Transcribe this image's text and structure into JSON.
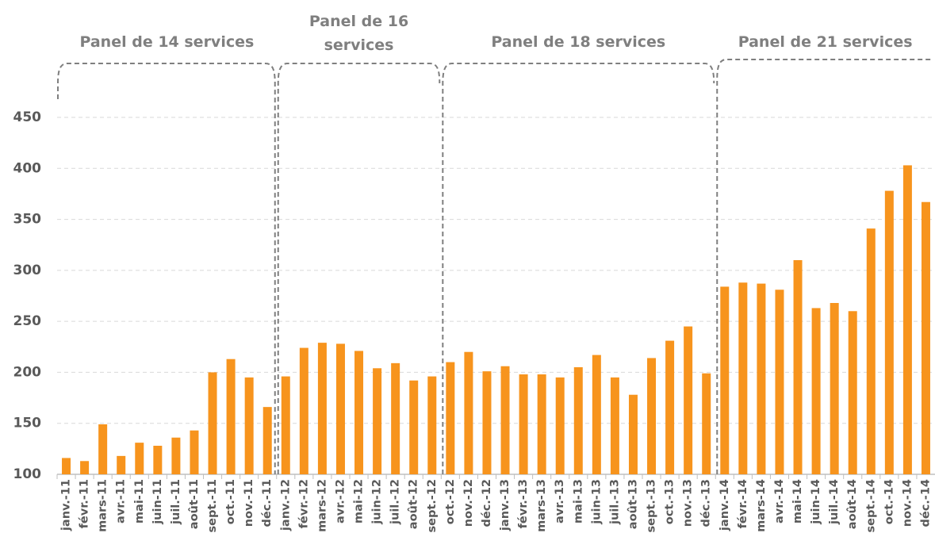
{
  "chart_data": {
    "type": "bar",
    "categories": [
      "janv.-11",
      "févr.-11",
      "mars-11",
      "avr.-11",
      "mai-11",
      "juin-11",
      "juil.-11",
      "août-11",
      "sept.-11",
      "oct.-11",
      "nov.-11",
      "déc.-11",
      "janv.-12",
      "févr.-12",
      "mars-12",
      "avr.-12",
      "mai-12",
      "juin-12",
      "juil.-12",
      "août-12",
      "sept.-12",
      "oct.-12",
      "nov.-12",
      "déc.-12",
      "janv.-13",
      "févr.-13",
      "mars-13",
      "avr.-13",
      "mai-13",
      "juin-13",
      "juil.-13",
      "août-13",
      "sept.-13",
      "oct.-13",
      "nov.-13",
      "déc.-13",
      "janv.-14",
      "févr.-14",
      "mars-14",
      "avr.-14",
      "mai-14",
      "juin-14",
      "juil.-14",
      "août-14",
      "sept.-14",
      "oct.-14",
      "nov.-14",
      "déc.-14"
    ],
    "values": [
      116,
      113,
      149,
      118,
      131,
      128,
      136,
      143,
      200,
      213,
      195,
      166,
      196,
      224,
      229,
      228,
      221,
      204,
      209,
      192,
      196,
      210,
      220,
      201,
      206,
      198,
      198,
      195,
      205,
      217,
      195,
      178,
      214,
      231,
      245,
      199,
      284,
      288,
      287,
      281,
      310,
      263,
      268,
      260,
      341,
      378,
      403,
      367
    ],
    "color": "#f7941d",
    "ylim": [
      100,
      450
    ],
    "yticks": [
      100,
      150,
      200,
      250,
      300,
      350,
      400,
      450
    ],
    "grid": true,
    "annotations": [
      {
        "lines": [
          "Panel de 14 services"
        ],
        "start": "janv.-11",
        "end": "déc.-11"
      },
      {
        "lines": [
          "Panel de 16",
          "services"
        ],
        "start": "janv.-12",
        "end": "sept.-12"
      },
      {
        "lines": [
          "Panel de 18 services"
        ],
        "start": "oct.-12",
        "end": "déc.-13"
      },
      {
        "lines": [
          "Panel de 21 services"
        ],
        "start": "janv.-14",
        "end": "déc.-14"
      }
    ]
  }
}
